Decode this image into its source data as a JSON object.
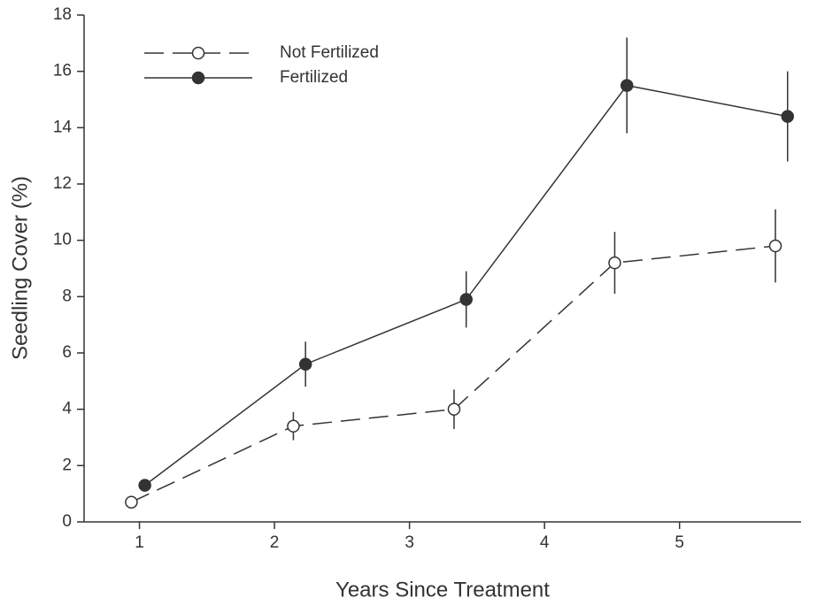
{
  "chart_data": {
    "type": "line",
    "x_label": "Years Since Treatment",
    "y_label": "Seedling Cover (%)",
    "xlim": [
      0.59,
      5.9
    ],
    "xticks": [
      1,
      2,
      3,
      4,
      5
    ],
    "ylim": [
      0,
      18
    ],
    "yticks": [
      0,
      2,
      4,
      6,
      8,
      10,
      12,
      14,
      16,
      18
    ],
    "legend": "upper left",
    "series": [
      {
        "name": "Not Fertilized",
        "color": "#333333",
        "dashed": true,
        "filled": false,
        "x": [
          0.94,
          2.14,
          3.33,
          4.52,
          5.71
        ],
        "values": [
          0.7,
          3.4,
          4.0,
          9.2,
          9.8
        ],
        "errors": [
          0.1,
          0.5,
          0.7,
          1.1,
          1.3
        ]
      },
      {
        "name": "Fertilized",
        "color": "#333333",
        "dashed": false,
        "filled": true,
        "x": [
          1.04,
          2.23,
          3.42,
          4.61,
          5.8
        ],
        "values": [
          1.3,
          5.6,
          7.9,
          15.5,
          14.4
        ],
        "errors": [
          0.2,
          0.8,
          1.0,
          1.7,
          1.6
        ]
      }
    ]
  }
}
